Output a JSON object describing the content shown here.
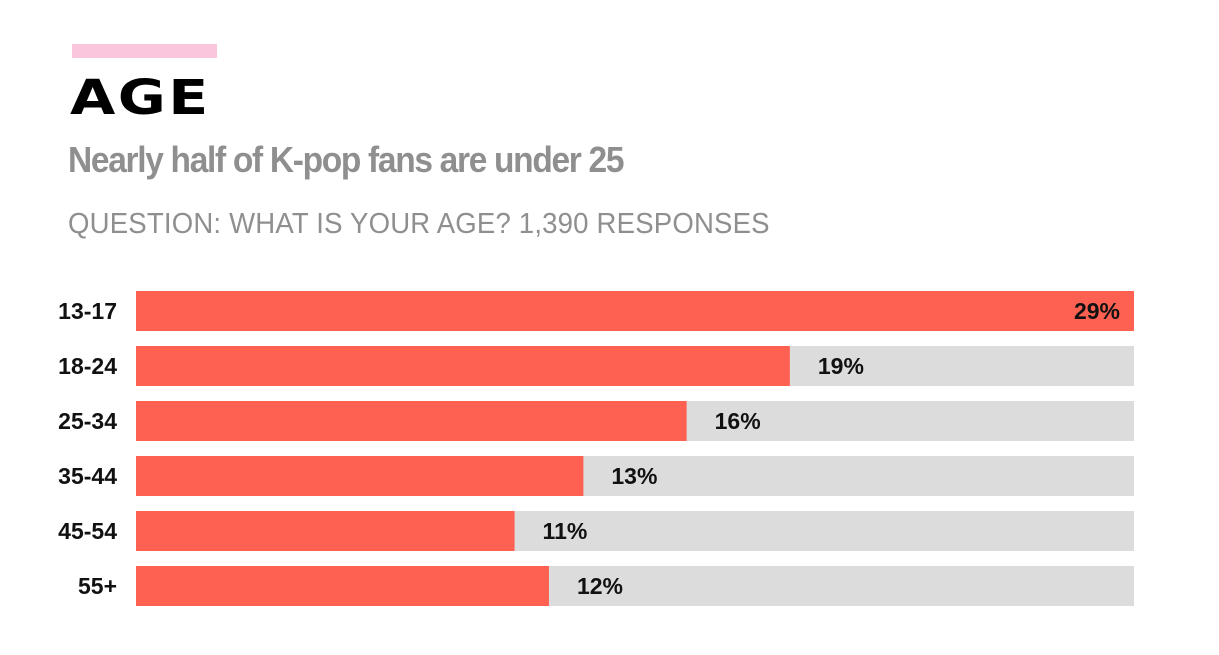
{
  "header": {
    "title": "AGE",
    "subtitle": "Nearly half of K-pop fans are under 25",
    "question": "QUESTION: WHAT IS YOUR AGE? 1,390 RESPONSES"
  },
  "colors": {
    "accent": "#f9c6dd",
    "bar": "#fe6152",
    "track": "#dcdcdd"
  },
  "chart_data": {
    "type": "bar",
    "orientation": "horizontal",
    "title": "AGE",
    "subtitle": "Nearly half of K-pop fans are under 25",
    "categories": [
      "13-17",
      "18-24",
      "25-34",
      "35-44",
      "45-54",
      "55+"
    ],
    "values": [
      29,
      19,
      16,
      13,
      11,
      12
    ],
    "value_labels": [
      "29%",
      "19%",
      "16%",
      "13%",
      "11%",
      "12%"
    ],
    "xlim": [
      0,
      29
    ],
    "grid": false,
    "legend": "none"
  }
}
